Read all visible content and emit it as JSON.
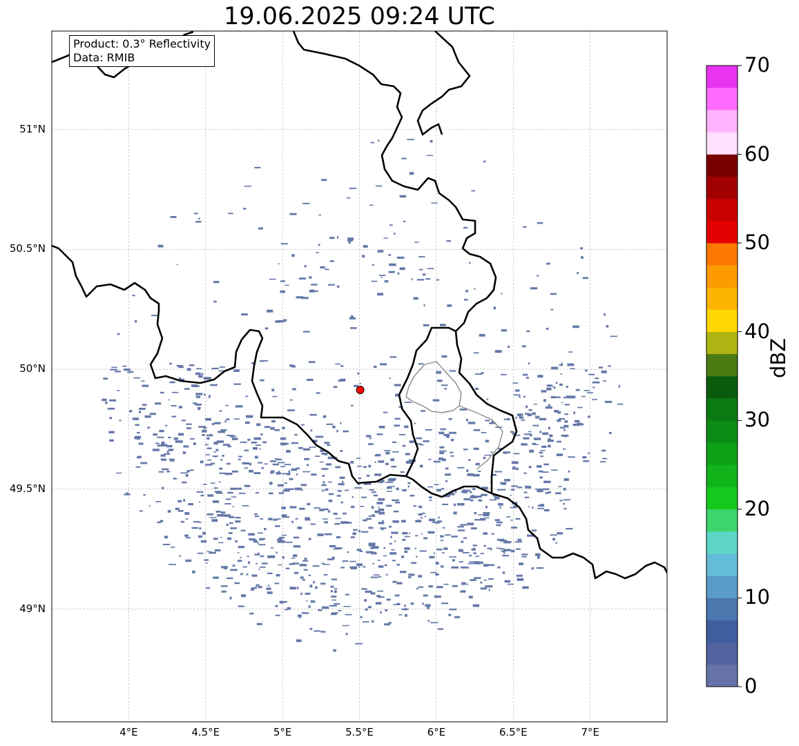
{
  "title": "19.06.2025 09:24 UTC",
  "info": {
    "line1": "Product: 0.3° Reflectivity",
    "line2": "Data: RMIB"
  },
  "lat_ticks": [
    {
      "v": 51,
      "label": "51°N"
    },
    {
      "v": 50.5,
      "label": "50.5°N"
    },
    {
      "v": 50,
      "label": "50°N"
    },
    {
      "v": 49.5,
      "label": "49.5°N"
    },
    {
      "v": 49,
      "label": "49°N"
    }
  ],
  "lon_ticks": [
    {
      "v": 4,
      "label": "4°E"
    },
    {
      "v": 4.5,
      "label": "4.5°E"
    },
    {
      "v": 5,
      "label": "5°E"
    },
    {
      "v": 5.5,
      "label": "5.5°E"
    },
    {
      "v": 6,
      "label": "6°E"
    },
    {
      "v": 6.5,
      "label": "6.5°E"
    },
    {
      "v": 7,
      "label": "7°E"
    }
  ],
  "extent": {
    "lon_min": 3.5,
    "lon_max": 7.5,
    "lat_min": 48.53,
    "lat_max": 51.41
  },
  "radar_site": {
    "lon": 5.505,
    "lat": 49.914,
    "color": "#ff0000"
  },
  "echo_color": "#6478a8",
  "colorbar": {
    "label": "dBZ",
    "ticks": [
      {
        "v": 0,
        "label": "0"
      },
      {
        "v": 10,
        "label": "10"
      },
      {
        "v": 20,
        "label": "20"
      },
      {
        "v": 30,
        "label": "30"
      },
      {
        "v": 40,
        "label": "40"
      },
      {
        "v": 50,
        "label": "50"
      },
      {
        "v": 60,
        "label": "60"
      },
      {
        "v": 70,
        "label": "70"
      }
    ],
    "min": 0,
    "max": 70,
    "step": 2.5,
    "colors": [
      "#6673a8",
      "#52629e",
      "#405da0",
      "#4a77ae",
      "#5a9cc8",
      "#64bcd8",
      "#5ed6c6",
      "#3cd46c",
      "#14c81c",
      "#10b41a",
      "#0ea016",
      "#0c8c14",
      "#0a7a12",
      "#0a5c0c",
      "#4a7a12",
      "#aeb412",
      "#fcd800",
      "#fcb400",
      "#fc9a00",
      "#fc7800",
      "#e40000",
      "#c80000",
      "#a00000",
      "#780000",
      "#ffe0ff",
      "#ffb4ff",
      "#ff6cff",
      "#e834f0"
    ]
  }
}
